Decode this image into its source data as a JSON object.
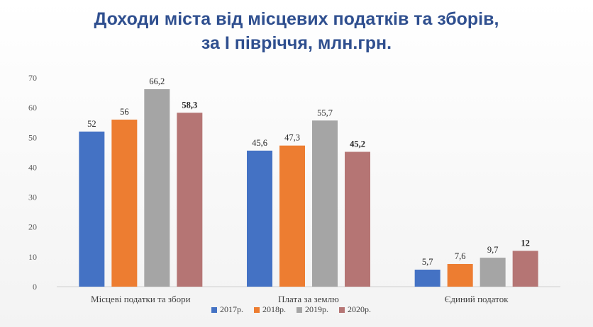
{
  "title": {
    "line1": "Доходи міста від місцевих податків та зборів,",
    "line2": "за I півріччя, млн.грн."
  },
  "chart_data": {
    "type": "bar",
    "categories": [
      "Місцеві податки та збори",
      "Плата за землю",
      "Єдиний податок"
    ],
    "series": [
      {
        "name": "2017р.",
        "color": "#4472c4",
        "values": [
          52,
          45.6,
          5.7
        ],
        "labels": [
          "52",
          "45,6",
          "5,7"
        ]
      },
      {
        "name": "2018р.",
        "color": "#ed7d31",
        "values": [
          56,
          47.3,
          7.6
        ],
        "labels": [
          "56",
          "47,3",
          "7,6"
        ]
      },
      {
        "name": "2019р.",
        "color": "#a5a5a5",
        "values": [
          66.2,
          55.7,
          9.7
        ],
        "labels": [
          "66,2",
          "55,7",
          "9,7"
        ]
      },
      {
        "name": "2020р.",
        "color": "#b57574",
        "values": [
          58.3,
          45.2,
          12
        ],
        "labels": [
          "58,3",
          "45,2",
          "12"
        ],
        "bold_labels": true
      }
    ],
    "ylim": [
      0,
      70
    ],
    "yticks": [
      0,
      10,
      20,
      30,
      40,
      50,
      60,
      70
    ],
    "grid": false,
    "legend": "bottom"
  }
}
